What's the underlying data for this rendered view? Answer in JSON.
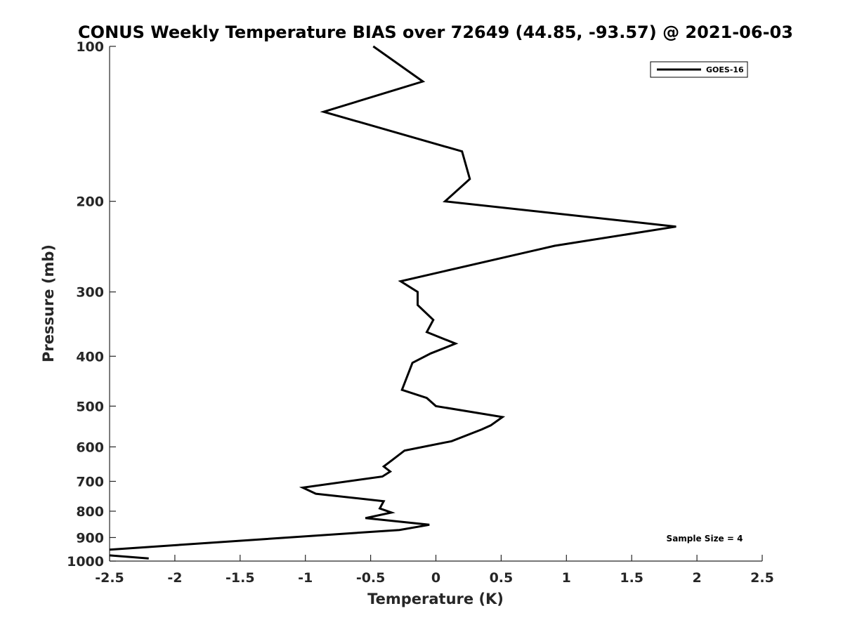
{
  "chart_data": {
    "type": "line",
    "title": "CONUS Weekly Temperature BIAS over 72649 (44.85, -93.57) @ 2021-06-03",
    "xlabel": "Temperature (K)",
    "ylabel": "Pressure (mb)",
    "xlim": [
      -2.5,
      2.5
    ],
    "ylim": [
      100,
      1000
    ],
    "y_scale": "log",
    "y_reversed": true,
    "xticks": [
      "-2.5",
      "-2",
      "-1.5",
      "-1",
      "-0.5",
      "0",
      "0.5",
      "1",
      "1.5",
      "2",
      "2.5"
    ],
    "yticks": [
      "100",
      "200",
      "300",
      "400",
      "500",
      "600",
      "700",
      "800",
      "900",
      "1000"
    ],
    "grid": false,
    "legend_position": "top-right",
    "annotation": "Sample Size = 4",
    "series": [
      {
        "name": "GOES-16",
        "color": "#000000",
        "points": [
          [
            -0.48,
            100
          ],
          [
            -0.1,
            117
          ],
          [
            -0.86,
            134
          ],
          [
            0.2,
            160
          ],
          [
            0.26,
            181
          ],
          [
            0.07,
            200
          ],
          [
            1.84,
            224
          ],
          [
            0.91,
            244
          ],
          [
            -0.27,
            286
          ],
          [
            -0.14,
            300
          ],
          [
            -0.14,
            318
          ],
          [
            -0.02,
            340
          ],
          [
            -0.07,
            359
          ],
          [
            0.15,
            378
          ],
          [
            -0.04,
            395
          ],
          [
            -0.18,
            412
          ],
          [
            -0.26,
            465
          ],
          [
            -0.07,
            482
          ],
          [
            0.0,
            500
          ],
          [
            0.51,
            525
          ],
          [
            0.42,
            545
          ],
          [
            0.35,
            555
          ],
          [
            0.12,
            585
          ],
          [
            -0.24,
            610
          ],
          [
            -0.33,
            635
          ],
          [
            -0.4,
            655
          ],
          [
            -0.35,
            670
          ],
          [
            -0.41,
            685
          ],
          [
            -1.02,
            720
          ],
          [
            -0.92,
            740
          ],
          [
            -0.4,
            765
          ],
          [
            -0.43,
            790
          ],
          [
            -0.34,
            805
          ],
          [
            -0.54,
            825
          ],
          [
            -0.05,
            850
          ],
          [
            -0.28,
            870
          ],
          [
            -2.5,
            950
          ]
        ]
      },
      {
        "name": "",
        "color": "#000000",
        "points": [
          [
            -2.5,
            975
          ],
          [
            -2.2,
            988
          ]
        ]
      }
    ]
  }
}
